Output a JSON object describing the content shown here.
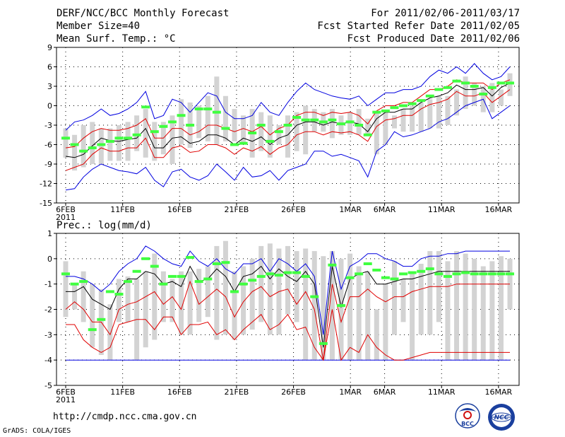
{
  "header": {
    "title": "DERF/NCC/BCC Monthly Forecast",
    "member_size": "Member Size=40",
    "variable": "Mean Surf. Temp.: °C",
    "forecast_period": "For 2011/02/06-2011/03/17",
    "started_refer": "Fcst Started Refer Date 2011/02/05",
    "produced": "Fcst Produced Date 2011/02/06"
  },
  "footer": {
    "url": "http://cmdp.ncc.cma.gov.cn",
    "credit": "GrADS: COLA/IGES"
  },
  "logos": [
    {
      "name": "BCC",
      "icon": "bcc-logo",
      "text": "BCC"
    },
    {
      "name": "NCC",
      "icon": "ncc-logo",
      "text": "NCC"
    }
  ],
  "colors": {
    "box": "#d3d3d3",
    "observed": "#40ff40",
    "ensemble_mean": "#000000",
    "inner_band": "#e00000",
    "outer_band": "#0000e0",
    "grid": "#000000"
  },
  "chart_data": [
    {
      "type": "line",
      "panel": "top",
      "ylabel": "Mean Surf. Temp.: °C",
      "ylim": [
        -15,
        9
      ],
      "yticks": [
        9,
        6,
        3,
        0,
        -3,
        -6,
        -9,
        -12,
        -15
      ],
      "xticks": [
        "6FEB\n2011",
        "11FEB",
        "16FEB",
        "21FEB",
        "26FEB",
        "1MAR",
        "6MAR",
        "11MAR",
        "16MAR"
      ],
      "days": 40,
      "series": [
        {
          "name": "box_top",
          "values": [
            -3.5,
            -4.5,
            -3,
            -2.5,
            -3.5,
            -3.5,
            -3,
            -2.5,
            -1.5,
            -0.5,
            -2.5,
            -2.5,
            -1.5,
            1,
            0.5,
            0,
            1.5,
            4.5,
            1.5,
            -0.5,
            -1.5,
            -0.5,
            -1,
            -1.5,
            -3,
            -1.5,
            -1,
            0,
            -0.5,
            -1,
            -0.5,
            -1.5,
            -1,
            -0.5,
            -2,
            -1,
            -1,
            -1.5,
            -0.5,
            0,
            0.5,
            1,
            1.5,
            1.5,
            2.5,
            4.5,
            3.5,
            3,
            3.5,
            2.5,
            5
          ]
        },
        {
          "name": "box_bottom",
          "values": [
            -8,
            -10,
            -9.5,
            -9,
            -9,
            -8.5,
            -8.5,
            -8.5,
            -7,
            -8,
            -8.5,
            -7.5,
            -9,
            -6,
            -6.5,
            -5,
            -5.5,
            -6,
            -5.5,
            -5.5,
            -6,
            -8,
            -7,
            -8,
            -6,
            -8,
            -7,
            -7.5,
            -4,
            -4,
            -5,
            -4.5,
            -4.5,
            -4.5,
            -4.5,
            -7.5,
            -6,
            -3.5,
            -4,
            -4,
            -4,
            -3.5,
            -3.5,
            -3,
            -1.5,
            -0.5,
            0,
            -1,
            -1,
            0,
            1.5
          ]
        },
        {
          "name": "observed",
          "values": [
            -5,
            -6,
            -7,
            -6.5,
            -6,
            -5.5,
            -5,
            -5,
            -4.5,
            -0.2,
            -4,
            -3.2,
            -2.5,
            -1.5,
            -3,
            -0.5,
            -0.5,
            -1,
            -3.5,
            -6,
            -5.8,
            -4.2,
            -3,
            -5.5,
            -4,
            -3,
            -1.8,
            -2.2,
            -2.2,
            -2.5,
            -2.2,
            -2.8,
            -2.5,
            -3,
            -4.5,
            -1,
            -0.8,
            -0.3,
            0,
            0.3,
            0.8,
            1.5,
            2.5,
            2.8,
            3.8,
            3.5,
            3,
            1.8,
            2.8,
            3.5,
            3.5
          ]
        },
        {
          "name": "ensemble_mean",
          "values": [
            -7.8,
            -8,
            -7.5,
            -6.2,
            -5,
            -5.4,
            -5.5,
            -5.2,
            -5,
            -3.5,
            -6.5,
            -6.5,
            -5,
            -4.8,
            -5.8,
            -5.5,
            -4.5,
            -4.5,
            -5,
            -6,
            -5,
            -5.5,
            -4.8,
            -6,
            -5,
            -4.5,
            -3,
            -2.5,
            -2.5,
            -3,
            -2.5,
            -2.8,
            -2.5,
            -2.8,
            -4,
            -2,
            -1,
            -1,
            -0.5,
            -0.5,
            0.5,
            1.2,
            1.5,
            2,
            3.2,
            2.5,
            2.5,
            2.8,
            1.5,
            2.8,
            3.5
          ]
        },
        {
          "name": "inner_upper",
          "values": [
            -6.5,
            -6.3,
            -5,
            -4,
            -3.5,
            -3.8,
            -3.8,
            -3.5,
            -3,
            -2,
            -5,
            -5,
            -3.5,
            -3.5,
            -4.5,
            -4,
            -3,
            -3,
            -3.5,
            -4,
            -3.5,
            -4,
            -3.2,
            -4.5,
            -3.5,
            -3,
            -1.5,
            -1,
            -1,
            -1.5,
            -1,
            -1.2,
            -1,
            -1.5,
            -2.8,
            -0.8,
            0,
            0,
            0.5,
            0.5,
            1.5,
            2.5,
            2.5,
            3,
            4,
            3.5,
            3.5,
            3.5,
            2.5,
            3.5,
            4
          ]
        },
        {
          "name": "inner_lower",
          "values": [
            -10,
            -9.5,
            -9,
            -7.5,
            -6.5,
            -7,
            -7,
            -6.5,
            -6.5,
            -5,
            -8,
            -8,
            -6.5,
            -6.2,
            -7.2,
            -7,
            -6,
            -6,
            -6.5,
            -7.5,
            -6.5,
            -7,
            -6.3,
            -7.5,
            -6.5,
            -6,
            -4.5,
            -4,
            -4,
            -4.5,
            -4,
            -4.2,
            -4,
            -4.5,
            -5.5,
            -3.2,
            -2.2,
            -2,
            -1.5,
            -1.5,
            -0.5,
            0.2,
            0.5,
            1,
            2.2,
            1.5,
            1.5,
            2,
            0.5,
            1.5,
            2.5
          ]
        },
        {
          "name": "outer_upper",
          "values": [
            -3.8,
            -2.5,
            -2.2,
            -1.5,
            -0.5,
            -1.5,
            -1.2,
            -0.5,
            0.5,
            2.2,
            -2,
            -1.5,
            1,
            0.5,
            -1,
            0.5,
            2,
            1.5,
            -1,
            -2,
            -2,
            -1.5,
            0.5,
            -1,
            -1.5,
            0.5,
            2.2,
            3.5,
            2.5,
            2,
            1.5,
            1.2,
            1,
            1.5,
            0,
            1,
            2,
            2,
            2.5,
            2.5,
            3,
            4.5,
            5.5,
            5,
            6,
            5,
            6.5,
            5,
            4,
            4.5,
            6
          ]
        },
        {
          "name": "outer_lower",
          "values": [
            -13,
            -12.8,
            -11,
            -9.8,
            -9,
            -9.5,
            -10,
            -10.2,
            -10.5,
            -9.5,
            -11.5,
            -12.5,
            -10.2,
            -9.8,
            -11,
            -11.5,
            -10.8,
            -9,
            -10.2,
            -11.5,
            -9.5,
            -11,
            -10.8,
            -10,
            -11.5,
            -10,
            -9.5,
            -9,
            -7,
            -7,
            -7.8,
            -7.5,
            -8,
            -8.5,
            -11,
            -7,
            -6,
            -4,
            -4.8,
            -4.5,
            -4,
            -3.5,
            -2.5,
            -2,
            -1,
            0,
            0.5,
            1,
            -2,
            -1,
            0
          ]
        }
      ]
    },
    {
      "type": "line",
      "panel": "bottom",
      "ylabel": "Prec.: log(mm/d)",
      "ylim": [
        -5,
        1
      ],
      "yticks": [
        1,
        0,
        -1,
        -2,
        -3,
        -4,
        -5
      ],
      "xticks": [
        "6FEB\n2011",
        "11FEB",
        "16FEB",
        "21FEB",
        "26FEB",
        "1MAR",
        "6MAR",
        "11MAR",
        "16MAR"
      ],
      "days": 40,
      "series": [
        {
          "name": "box_top",
          "values": [
            -0.1,
            -1,
            -0.5,
            -1,
            -1.2,
            -1.8,
            -0.8,
            -0.7,
            -0.8,
            -0.5,
            0.2,
            -0.5,
            -0.8,
            -0.5,
            -0.5,
            -0.4,
            -0.3,
            0.5,
            0.7,
            -0.5,
            -0.3,
            0,
            0.5,
            0.6,
            0.4,
            0.5,
            0.3,
            0.4,
            0.3,
            0.1,
            0.3,
            0,
            0.2,
            -0.3,
            -0.5,
            -2,
            -1,
            -0.1,
            -0.8,
            -0.6,
            -0.2,
            0.3,
            0.3,
            -0.1,
            0.3,
            0.2,
            0,
            -0.3,
            -0.1,
            0.1,
            0
          ]
        },
        {
          "name": "box_bottom",
          "values": [
            -2.3,
            -2,
            -2.5,
            -3.5,
            -3.8,
            -4,
            -2.5,
            -2.5,
            -4,
            -3.5,
            -3.2,
            -2.5,
            -2.5,
            -3,
            -3,
            -2.5,
            -2.3,
            -3.2,
            -3,
            -3.2,
            -3,
            -2.8,
            -2.5,
            -3,
            -3,
            -2.2,
            -2.5,
            -4,
            -4,
            -4,
            -4,
            -4,
            -4,
            -4,
            -4,
            -4,
            -4,
            -3,
            -2.5,
            -4,
            -3,
            -3,
            -2.5,
            -4,
            -4,
            -4,
            -4,
            -4,
            -4,
            -4,
            -2
          ]
        },
        {
          "name": "observed",
          "values": [
            -0.6,
            -1,
            -0.9,
            -2.8,
            -2.4,
            -1.3,
            -1.4,
            -0.9,
            -0.5,
            0,
            -0.3,
            -1,
            -0.7,
            -0.7,
            0.05,
            -0.9,
            -0.8,
            -0.2,
            -0.15,
            -1.3,
            -1,
            -0.85,
            -0.7,
            -0.6,
            -0.65,
            -0.55,
            -0.55,
            -0.7,
            -1.5,
            -3.35,
            -0.25,
            -1.85,
            -0.75,
            -0.6,
            -0.2,
            -0.45,
            -0.75,
            -0.8,
            -0.6,
            -0.55,
            -0.5,
            -0.4,
            -0.6,
            -0.7,
            -0.6,
            -0.55,
            -0.6,
            -0.6,
            -0.6,
            -0.6,
            -0.6
          ]
        },
        {
          "name": "ensemble_mean",
          "values": [
            -1.3,
            -1.3,
            -1.1,
            -1.6,
            -1.8,
            -2,
            -1.2,
            -0.8,
            -0.8,
            -0.5,
            -0.6,
            -1,
            -0.9,
            -1.1,
            -0.3,
            -0.9,
            -0.8,
            -0.4,
            -0.7,
            -1.3,
            -0.7,
            -0.6,
            -0.3,
            -0.8,
            -0.4,
            -0.7,
            -0.9,
            -0.5,
            -1,
            -3.5,
            -0.3,
            -1.9,
            -0.8,
            -0.6,
            -0.5,
            -1,
            -1,
            -0.9,
            -0.8,
            -0.8,
            -0.7,
            -0.6,
            -0.5,
            -0.5,
            -0.5,
            -0.5,
            -0.5,
            -0.5,
            -0.5,
            -0.5,
            -0.5
          ]
        },
        {
          "name": "inner_upper",
          "values": [
            -2,
            -1.7,
            -2,
            -2.5,
            -2.5,
            -3,
            -2,
            -1.8,
            -1.7,
            -1.5,
            -1.3,
            -1.8,
            -1.5,
            -2,
            -0.9,
            -1.8,
            -1.5,
            -1.2,
            -1.5,
            -2.3,
            -1.7,
            -1.3,
            -1.1,
            -1.5,
            -1.3,
            -1.2,
            -1.8,
            -1.3,
            -2,
            -4,
            -1,
            -2.5,
            -1.5,
            -1.5,
            -1.2,
            -1.5,
            -1.7,
            -1.5,
            -1.5,
            -1.3,
            -1.2,
            -1.1,
            -1.1,
            -1.1,
            -1,
            -1,
            -1,
            -1,
            -1,
            -1,
            -1
          ]
        },
        {
          "name": "inner_lower",
          "values": [
            -2.6,
            -2.6,
            -3.2,
            -3.5,
            -3.7,
            -3.5,
            -2.6,
            -2.5,
            -2.4,
            -2.4,
            -2.8,
            -2.3,
            -2.3,
            -3,
            -2.6,
            -2.6,
            -2.5,
            -3,
            -2.8,
            -3.2,
            -2.8,
            -2.5,
            -2.2,
            -2.8,
            -2.6,
            -2.2,
            -2.8,
            -2.7,
            -3.5,
            -4,
            -2,
            -4,
            -3.5,
            -3.7,
            -3,
            -3.5,
            -3.8,
            -4,
            -4,
            -3.9,
            -3.8,
            -3.7,
            -3.7,
            -3.7,
            -3.7,
            -3.7,
            -3.7,
            -3.7,
            -3.7,
            -3.7,
            -3.7
          ]
        },
        {
          "name": "outer_upper",
          "values": [
            -0.7,
            -0.7,
            -0.8,
            -1,
            -1.3,
            -1,
            -0.5,
            -0.2,
            0,
            0.5,
            0.3,
            0,
            -0.2,
            -0.3,
            0.3,
            -0.1,
            -0.3,
            0,
            -0.4,
            -0.6,
            -0.2,
            -0.2,
            0,
            -0.5,
            0,
            -0.2,
            -0.5,
            -0.2,
            -0.7,
            -3,
            0.3,
            -1.2,
            -0.3,
            -0.1,
            0.2,
            0.2,
            0,
            -0.1,
            -0.3,
            -0.3,
            0,
            0.1,
            0.1,
            0.2,
            0.2,
            0.3,
            0.3,
            0.3,
            0.3,
            0.3,
            0.3
          ]
        },
        {
          "name": "outer_lower",
          "values": [
            -4,
            -4,
            -4,
            -4,
            -4,
            -4,
            -4,
            -4,
            -4,
            -4,
            -4,
            -4,
            -4,
            -4,
            -4,
            -4,
            -4,
            -4,
            -4,
            -4,
            -4,
            -4,
            -4,
            -4,
            -4,
            -4,
            -4,
            -4,
            -4,
            -4,
            -4,
            -4,
            -4,
            -4,
            -4,
            -4,
            -4,
            -4,
            -4,
            -4,
            -4,
            -4,
            -4,
            -4,
            -4,
            -4,
            -4,
            -4,
            -4,
            -4,
            -4
          ]
        }
      ]
    }
  ]
}
